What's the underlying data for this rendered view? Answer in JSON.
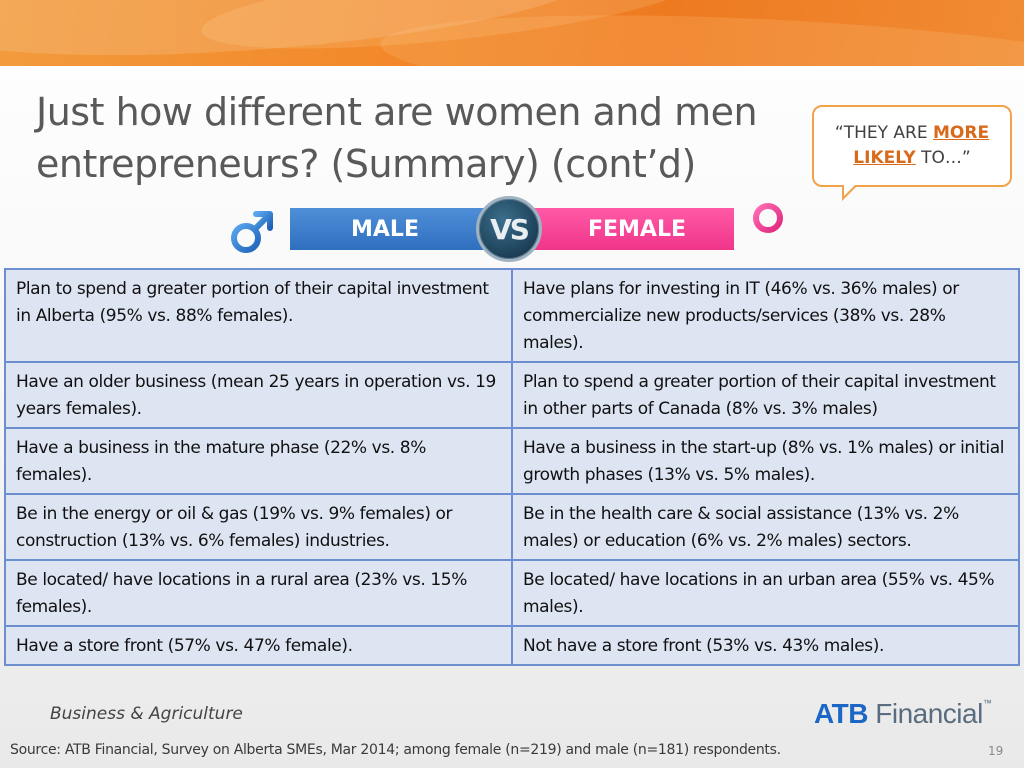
{
  "slide": {
    "title_line1": "Just how different are women and men",
    "title_line2": "entrepreneurs? (Summary) (cont’d)",
    "bubble": {
      "pre": "“THEY ARE ",
      "emphasis1": "MORE",
      "emphasis2": "LIKELY",
      "post": " TO…”"
    },
    "comparison": {
      "male_label": "MALE",
      "vs_label": "VS",
      "female_label": "FEMALE"
    },
    "rows": [
      {
        "male": "Plan to spend a greater portion of their capital investment in Alberta (95% vs. 88% females).",
        "female": "Have plans for investing in IT (46% vs. 36% males) or commercialize new products/services (38% vs. 28% males)."
      },
      {
        "male": "Have an older business (mean 25 years in operation vs. 19 years females).",
        "female": "Plan to spend a greater portion of their capital investment in other parts of Canada (8% vs. 3% males)"
      },
      {
        "male": "Have a business in the mature phase (22% vs. 8% females).",
        "female": "Have a business in the start-up (8% vs. 1% males) or initial growth phases (13% vs. 5% males)."
      },
      {
        "male": "Be in the energy or oil & gas (19% vs. 9% females) or construction (13% vs. 6% females) industries.",
        "female": "Be in the health care & social assistance (13% vs. 2% males) or education (6% vs. 2% males) sectors."
      },
      {
        "male": "Be located/ have locations in a rural area (23% vs. 15% females).",
        "female": "Be located/ have locations in an urban area (55% vs. 45% males)."
      },
      {
        "male": "Have a store front (57% vs. 47% female).",
        "female": "Not have a store front (53% vs. 43% males)."
      }
    ],
    "footer": {
      "division": "Business & Agriculture",
      "logo_bold": "ATB",
      "logo_rest": " Financial",
      "logo_tm": "™",
      "source": "Source:  ATB Financial, Survey on Alberta SMEs, Mar 2014; among female (n=219) and male (n=181) respondents.",
      "page_number": "19"
    },
    "colors": {
      "accent_orange": "#f28a2b",
      "male_blue": "#2f6fbf",
      "female_pink": "#f0358a",
      "table_fill": "#dde4f2",
      "table_border": "#6c8fd0"
    },
    "icons": {
      "male": "male-symbol-icon",
      "female": "female-symbol-icon"
    }
  }
}
